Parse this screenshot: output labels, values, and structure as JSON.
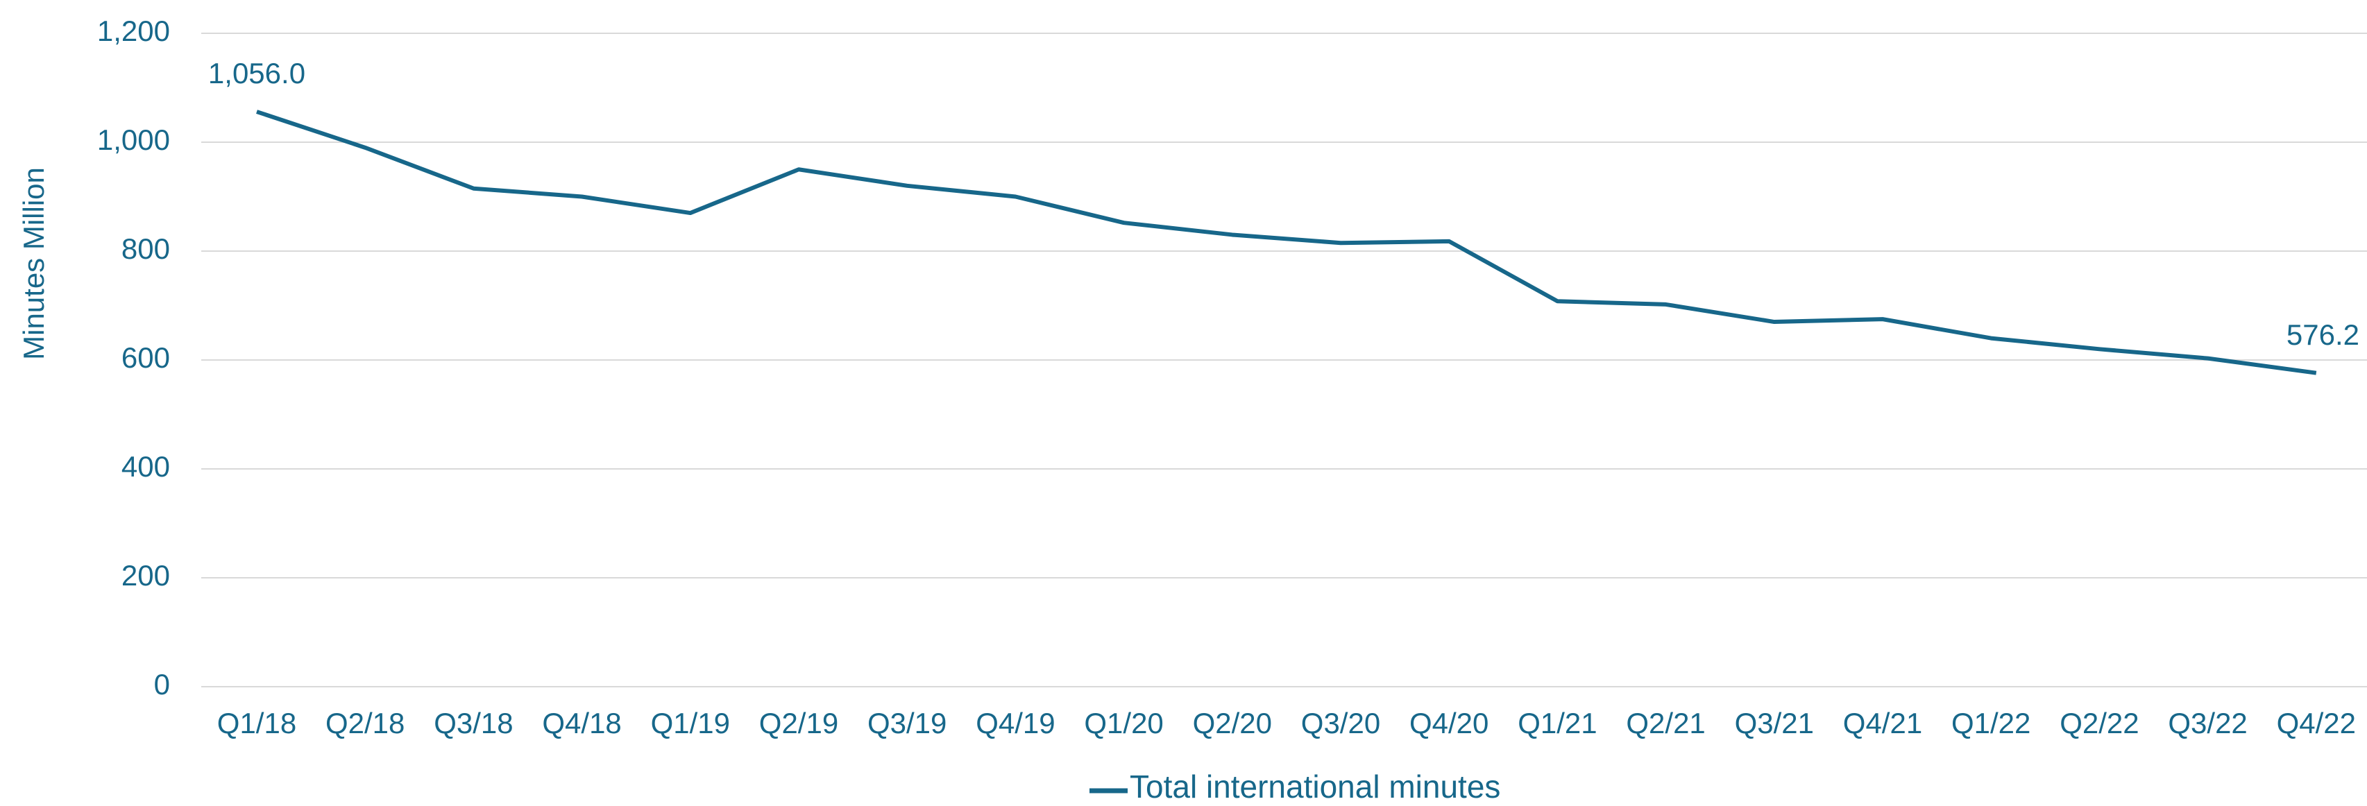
{
  "chart_data": {
    "type": "line",
    "y_label": "Minutes Million",
    "categories": [
      "Q1/18",
      "Q2/18",
      "Q3/18",
      "Q4/18",
      "Q1/19",
      "Q2/19",
      "Q3/19",
      "Q4/19",
      "Q1/20",
      "Q2/20",
      "Q3/20",
      "Q4/20",
      "Q1/21",
      "Q2/21",
      "Q3/21",
      "Q4/21",
      "Q1/22",
      "Q2/22",
      "Q3/22",
      "Q4/22"
    ],
    "series": [
      {
        "name": "Total international minutes",
        "color": "#17678a",
        "values": [
          1056.0,
          990,
          915,
          900,
          870,
          950,
          920,
          900,
          852,
          830,
          815,
          818,
          708,
          702,
          670,
          675,
          640,
          620,
          603,
          576.2
        ],
        "value_labels": [
          "1,056.0",
          null,
          null,
          null,
          null,
          null,
          null,
          null,
          null,
          null,
          null,
          null,
          null,
          null,
          null,
          null,
          null,
          null,
          null,
          "576.2"
        ]
      }
    ],
    "ylim": [
      0,
      1200
    ],
    "yticks": [
      0,
      200,
      400,
      600,
      800,
      {
        "value": 1000,
        "label": "1,000"
      },
      {
        "value": 1200,
        "label": "1,200"
      }
    ],
    "grid": true,
    "legend": "bottom"
  }
}
